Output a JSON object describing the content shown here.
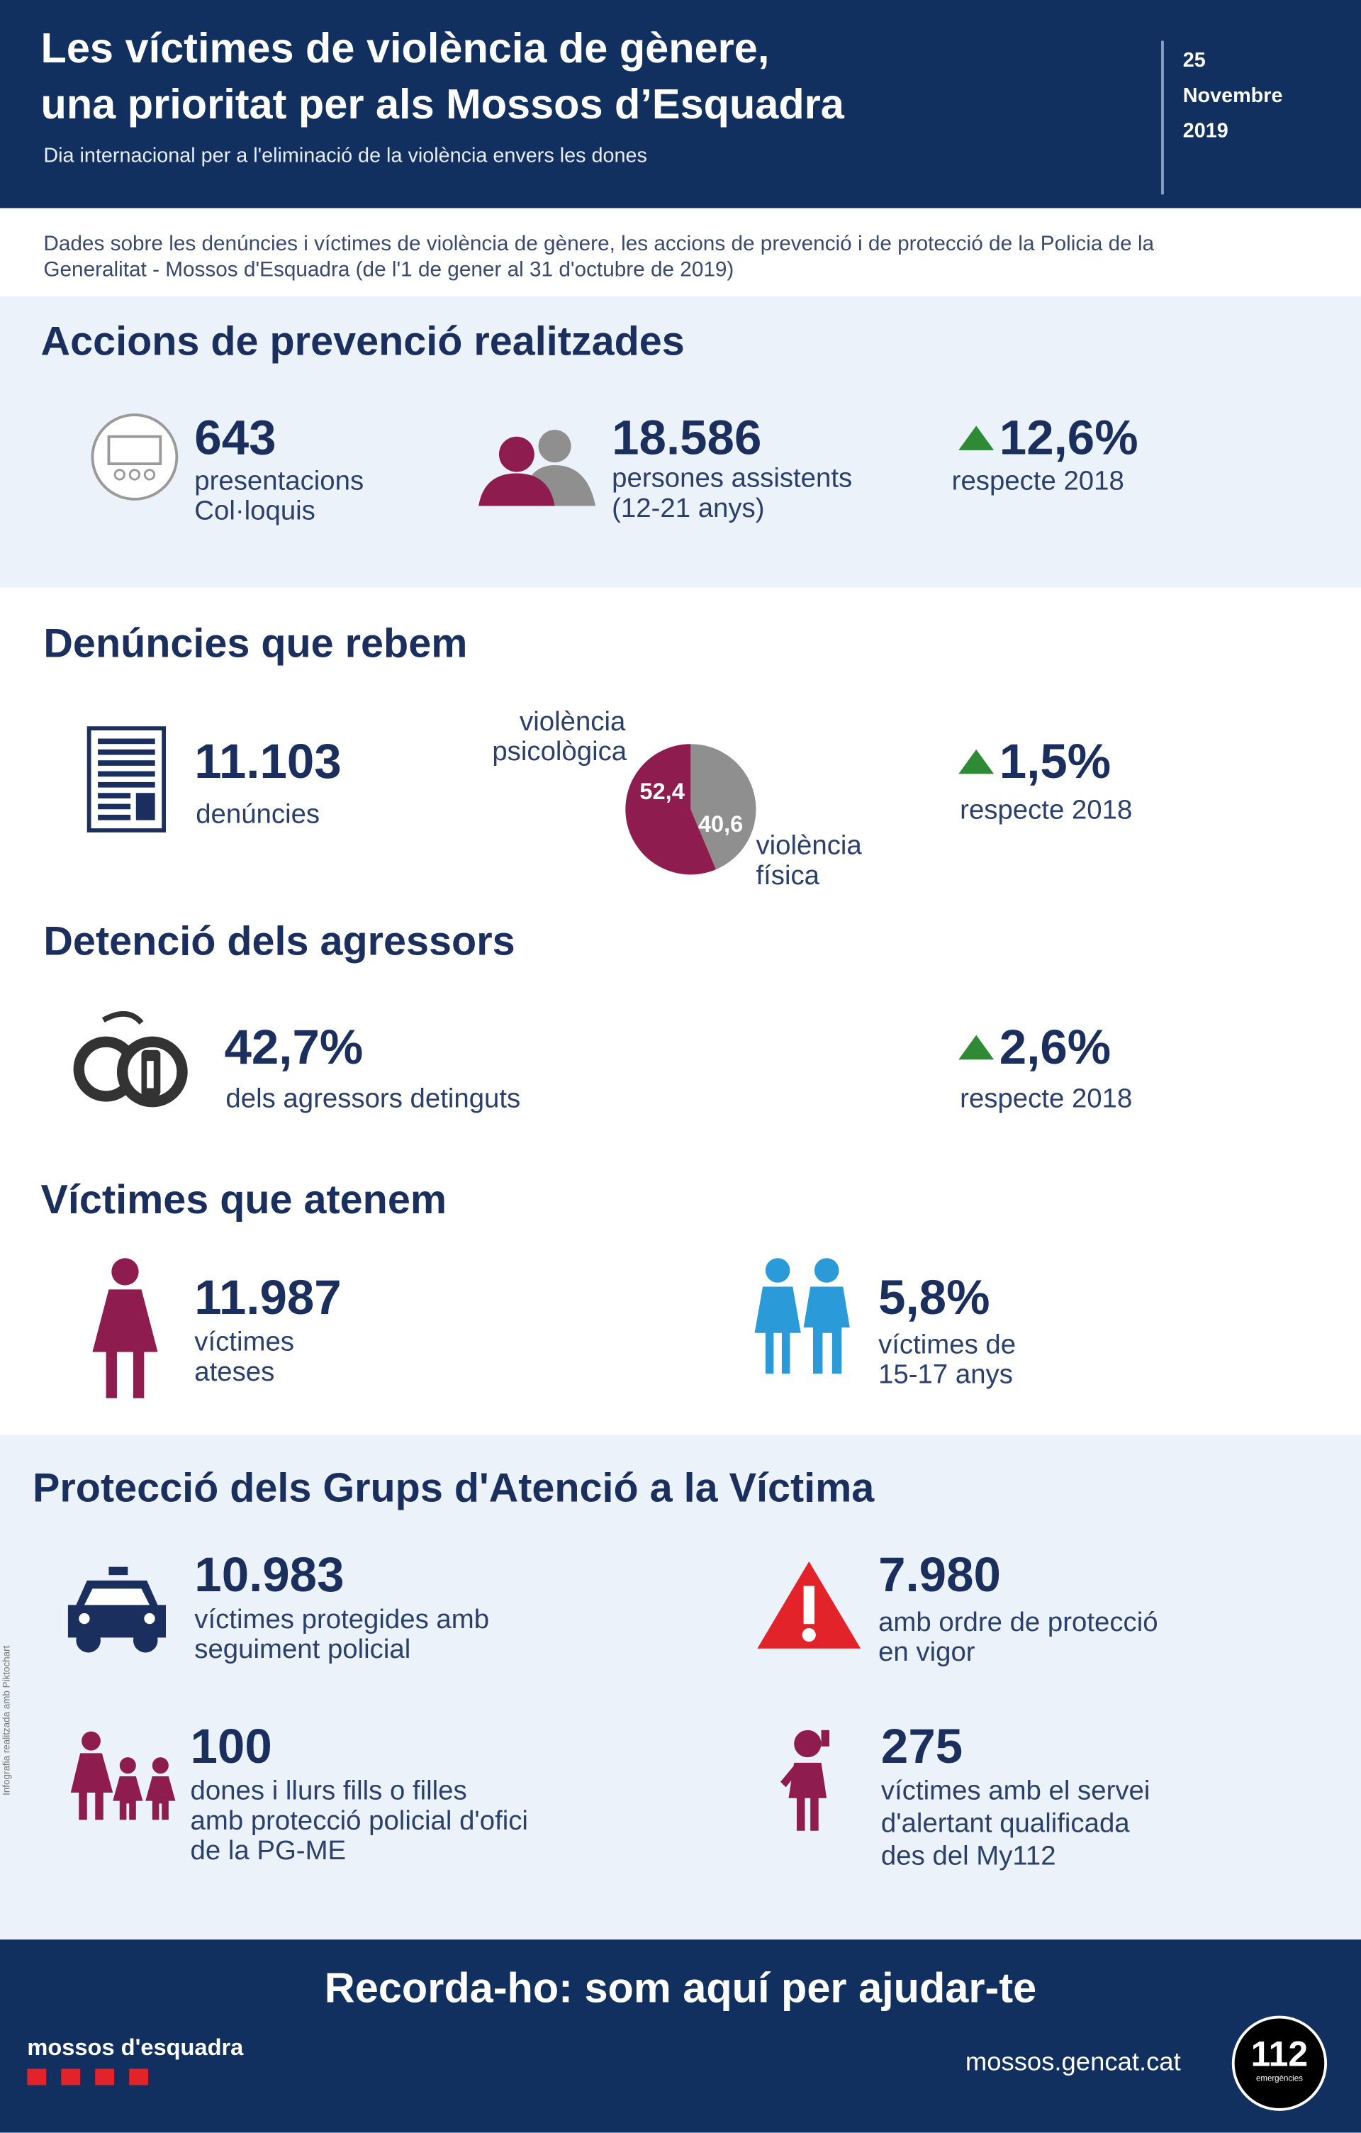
{
  "header": {
    "title_lines": [
      "Les víctimes de violència de gènere,",
      "una prioritat per als Mossos d’Esquadra"
    ],
    "subtitle": "Dia internacional per a l'eliminació de la violència envers les dones",
    "date_lines": [
      "25",
      "Novembre",
      "2019"
    ]
  },
  "intro": "Dades sobre les denúncies i víctimes de violència de gènere, les accions de prevenció i de protecció de la Policia de la Generalitat - Mossos d'Esquadra (de l'1 de gener al 31 d'octubre de 2019)",
  "prevention": {
    "heading": "Accions de prevenció realitzades",
    "stats": [
      {
        "value": "643",
        "lines": [
          "presentacions",
          "Col·loquis"
        ]
      },
      {
        "value": "18.586",
        "lines": [
          "persones assistents",
          "(12-21 anys)"
        ]
      },
      {
        "value": "12,6%",
        "lines": [
          "respecte 2018"
        ]
      }
    ]
  },
  "complaints": {
    "heading": "Denúncies que rebem",
    "stat": {
      "value": "11.103",
      "lines": [
        "denúncies"
      ]
    },
    "pie": {
      "labels": [
        [
          "violència",
          "psicològica"
        ],
        [
          "violència",
          "física"
        ]
      ],
      "values": [
        52.4,
        40.6
      ],
      "value_labels": [
        "52,4",
        "40,6"
      ],
      "colors": [
        "#8e1c4f",
        "#8f8f8f"
      ]
    },
    "change": {
      "value": "1,5%",
      "lines": [
        "respecte 2018"
      ]
    }
  },
  "detention": {
    "heading": "Detenció dels agressors",
    "stat": {
      "value": "42,7%",
      "lines": [
        "dels agressors detinguts"
      ]
    },
    "change": {
      "value": "2,6%",
      "lines": [
        "respecte 2018"
      ]
    }
  },
  "victims": {
    "heading": "Víctimes que atenem",
    "stats": [
      {
        "value": "11.987",
        "lines": [
          "víctimes",
          "ateses"
        ]
      },
      {
        "value": "5,8%",
        "lines": [
          "víctimes de",
          "15-17 anys"
        ]
      }
    ]
  },
  "protection": {
    "heading": "Protecció dels Grups d'Atenció a la Víctima",
    "stats": [
      {
        "value": "10.983",
        "lines": [
          "víctimes protegides amb",
          "seguiment policial"
        ]
      },
      {
        "value": "7.980",
        "lines": [
          "amb ordre de protecció",
          "en vigor"
        ]
      },
      {
        "value": "100",
        "lines": [
          "dones i llurs fills o filles",
          "amb protecció policial d'ofici",
          "de la PG-ME"
        ]
      },
      {
        "value": "275",
        "lines": [
          "víctimes amb el servei",
          "d'alertant qualificada",
          "des del My112"
        ]
      }
    ]
  },
  "credit": "Infografia realitzada amb Piktochart",
  "footer": {
    "message": "Recorda-ho: som aquí per ajudar-te",
    "brand": "mossos d'esquadra",
    "url": "mossos.gencat.cat",
    "badge": "112",
    "badge_sub": "emergències"
  }
}
